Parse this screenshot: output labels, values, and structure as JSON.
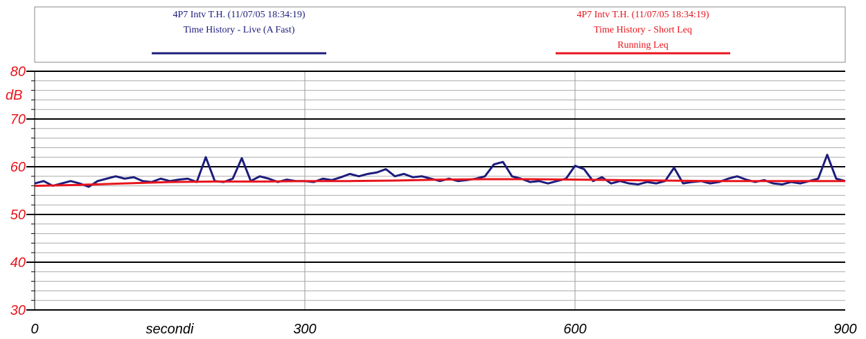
{
  "chart_data": {
    "type": "line",
    "xlabel": "secondi",
    "ylabel": "dB",
    "xlim": [
      0,
      900
    ],
    "xticks": [
      0,
      300,
      600,
      900
    ],
    "ylim": [
      30,
      80
    ],
    "yticks": [
      30,
      40,
      50,
      60,
      70,
      80
    ],
    "yminor": [
      32,
      34,
      36,
      38,
      42,
      44,
      46,
      48,
      52,
      54,
      56,
      58,
      62,
      64,
      66,
      68,
      72,
      74,
      76,
      78
    ],
    "grid": true,
    "series": [
      {
        "name": [
          "4P7 Intv T.H. (11/07/05 18:34:19)",
          "Time History - Live (A Fast)"
        ],
        "color": "#1c1c7c",
        "x": [
          0,
          10,
          20,
          30,
          40,
          50,
          60,
          70,
          80,
          90,
          100,
          110,
          120,
          130,
          140,
          150,
          160,
          170,
          180,
          190,
          200,
          210,
          220,
          230,
          240,
          250,
          260,
          270,
          280,
          290,
          300,
          310,
          320,
          330,
          340,
          350,
          360,
          370,
          380,
          390,
          400,
          410,
          420,
          430,
          440,
          450,
          460,
          470,
          480,
          490,
          500,
          510,
          520,
          530,
          540,
          550,
          560,
          570,
          580,
          590,
          600,
          610,
          620,
          630,
          640,
          650,
          660,
          670,
          680,
          690,
          700,
          710,
          720,
          730,
          740,
          750,
          760,
          770,
          780,
          790,
          800,
          810,
          820,
          830,
          840,
          850,
          860,
          870,
          880,
          890,
          900
        ],
        "values": [
          56.5,
          57,
          56,
          56.5,
          57,
          56.5,
          55.8,
          57,
          57.5,
          58,
          57.5,
          57.8,
          57,
          56.8,
          57.5,
          57,
          57.3,
          57.5,
          56.8,
          62,
          57,
          56.8,
          57.5,
          61.8,
          57,
          58,
          57.5,
          56.8,
          57.3,
          57,
          57,
          56.8,
          57.5,
          57.2,
          57.8,
          58.5,
          58,
          58.5,
          58.8,
          59.5,
          58,
          58.5,
          57.8,
          58,
          57.5,
          57,
          57.5,
          57,
          57.2,
          57.5,
          58,
          60.5,
          61,
          58,
          57.5,
          56.8,
          57,
          56.5,
          57,
          57.5,
          60.2,
          59.5,
          57,
          57.8,
          56.5,
          57,
          56.5,
          56.3,
          56.8,
          56.5,
          57,
          59.8,
          56.5,
          56.8,
          57,
          56.5,
          56.8,
          57.5,
          58,
          57.3,
          56.8,
          57.2,
          56.5,
          56.3,
          56.8,
          56.5,
          57,
          57.5,
          62.5,
          57.5,
          57
        ]
      },
      {
        "name": [
          "4P7 Intv T.H. (11/07/05 18:34:19)",
          "Time History - Short Leq",
          "Running Leq"
        ],
        "color": "#e8141c",
        "x": [
          0,
          50,
          100,
          150,
          200,
          250,
          300,
          350,
          400,
          450,
          500,
          550,
          600,
          650,
          700,
          750,
          800,
          850,
          900
        ],
        "values": [
          56,
          56.2,
          56.5,
          56.8,
          56.9,
          56.9,
          57,
          57,
          57.1,
          57.3,
          57.4,
          57.4,
          57.3,
          57.2,
          57.1,
          57,
          57,
          57,
          57
        ]
      }
    ]
  }
}
